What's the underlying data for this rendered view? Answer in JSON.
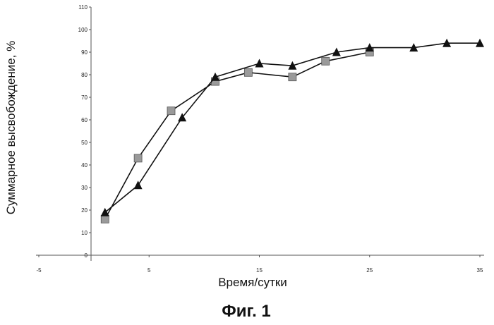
{
  "chart_data": {
    "type": "line",
    "title": "",
    "xlabel": "Время/сутки",
    "ylabel": "Суммарное высвобождение, %",
    "xlim": [
      -5,
      35
    ],
    "ylim": [
      0,
      110
    ],
    "x_ticks": [
      "-5",
      "5",
      "15",
      "25",
      "35"
    ],
    "y_ticks": [
      "0",
      "10",
      "20",
      "30",
      "40",
      "50",
      "60",
      "70",
      "80",
      "90",
      "100",
      "110"
    ],
    "grid": false,
    "legend": "none",
    "series": [
      {
        "marker": "square",
        "color": "#9a9a9a",
        "x": [
          1,
          4,
          7,
          11,
          14,
          18,
          21,
          25
        ],
        "y": [
          16,
          43,
          64,
          77,
          81,
          79,
          86,
          90
        ]
      },
      {
        "marker": "triangle",
        "color": "#111111",
        "x": [
          1,
          4,
          8,
          11,
          15,
          18,
          22,
          25,
          29,
          32,
          35
        ],
        "y": [
          19,
          31,
          61,
          79,
          85,
          84,
          90,
          92,
          92,
          94,
          94
        ]
      }
    ]
  },
  "caption": "Фиг. 1",
  "colors": {
    "line": "#111111",
    "axis": "#555555",
    "square_fill": "#9a9a9a"
  }
}
